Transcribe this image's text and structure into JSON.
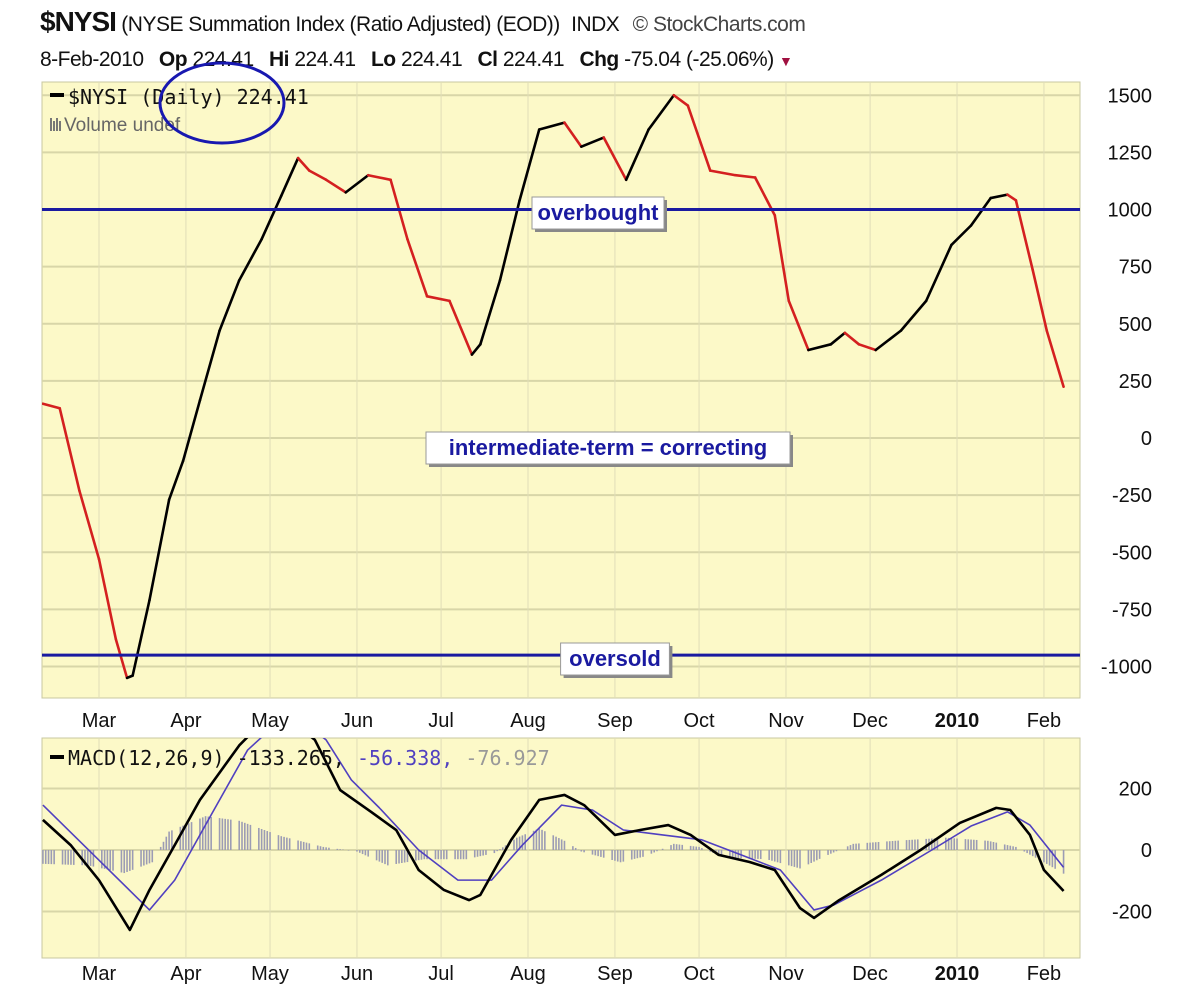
{
  "header": {
    "symbol": "$NYSI",
    "description": "(NYSE Summation Index (Ratio Adjusted) (EOD))",
    "exchange": "INDX",
    "brand": "© StockCharts.com",
    "date": "8-Feb-2010",
    "open_label": "Op",
    "open": "224.41",
    "high_label": "Hi",
    "high": "224.41",
    "low_label": "Lo",
    "low": "224.41",
    "close_label": "Cl",
    "close": "224.41",
    "change_label": "Chg",
    "change": "-75.04 (-25.06%)",
    "change_direction": "down"
  },
  "colors": {
    "background": "#FCF9C8",
    "rising": "#000000",
    "falling": "#D42020",
    "annotation": "#1A1AA0",
    "signal": "#5040C0",
    "histogram": "#9C9CB4"
  },
  "chart_data": [
    {
      "type": "line",
      "panel": "price",
      "legend": {
        "series": "$NYSI (Daily) 224.41",
        "volume": "Volume undef"
      },
      "y_ticks": [
        1500,
        1250,
        1000,
        750,
        500,
        250,
        0,
        -250,
        -500,
        -750,
        -1000
      ],
      "ylim": [
        -1120,
        1570
      ],
      "xlim": [
        "2009-02-09",
        "2010-02-12"
      ],
      "x_ticks": [
        "Mar",
        "Apr",
        "May",
        "Jun",
        "Jul",
        "Aug",
        "Sep",
        "Oct",
        "Nov",
        "Dec",
        "2010",
        "Feb"
      ],
      "grid": true,
      "color_rule": "black when rising, red when falling",
      "reference_lines": [
        {
          "value": 1000,
          "label": "overbought"
        },
        {
          "value": -950,
          "label": "oversold"
        }
      ],
      "annotation": "intermediate-term = correcting",
      "circled_text": "(Daily)",
      "series": [
        {
          "x": [
            "2009-02-09",
            "2009-02-15",
            "2009-02-22",
            "2009-03-01",
            "2009-03-07",
            "2009-03-11",
            "2009-03-13",
            "2009-03-19",
            "2009-03-26",
            "2009-03-31",
            "2009-04-06",
            "2009-04-13",
            "2009-04-20",
            "2009-04-28",
            "2009-05-05",
            "2009-05-11",
            "2009-05-15",
            "2009-05-21",
            "2009-05-28",
            "2009-06-05",
            "2009-06-13",
            "2009-06-19",
            "2009-06-26",
            "2009-07-04",
            "2009-07-12",
            "2009-07-15",
            "2009-07-22",
            "2009-07-29",
            "2009-08-05",
            "2009-08-14",
            "2009-08-20",
            "2009-08-28",
            "2009-09-05",
            "2009-09-13",
            "2009-09-22",
            "2009-09-27",
            "2009-10-05",
            "2009-10-14",
            "2009-10-21",
            "2009-10-28",
            "2009-11-02",
            "2009-11-09",
            "2009-11-17",
            "2009-11-22",
            "2009-11-27",
            "2009-12-03",
            "2009-12-12",
            "2009-12-21",
            "2009-12-30",
            "2010-01-06",
            "2010-01-13",
            "2010-01-19",
            "2010-01-22",
            "2010-01-28",
            "2010-02-02",
            "2010-02-08"
          ],
          "y": [
            150,
            130,
            -230,
            -530,
            -880,
            -1050,
            -1040,
            -710,
            -270,
            -100,
            165,
            470,
            690,
            870,
            1060,
            1225,
            1170,
            1130,
            1075,
            1150,
            1130,
            870,
            620,
            600,
            365,
            410,
            690,
            1040,
            1350,
            1380,
            1275,
            1315,
            1130,
            1350,
            1500,
            1455,
            1170,
            1150,
            1140,
            975,
            600,
            385,
            410,
            460,
            410,
            385,
            470,
            600,
            845,
            930,
            1050,
            1065,
            1040,
            735,
            470,
            224.41
          ]
        }
      ]
    },
    {
      "type": "line",
      "panel": "indicator",
      "legend": {
        "name": "MACD(12,26,9)",
        "macd": "-133.265,",
        "signal": "-56.338,",
        "histogram": "-76.927"
      },
      "y_ticks": [
        200,
        0,
        -200
      ],
      "ylim": [
        -350,
        365
      ],
      "x_ticks": [
        "Mar",
        "Apr",
        "May",
        "Jun",
        "Jul",
        "Aug",
        "Sep",
        "Oct",
        "Nov",
        "Dec",
        "2010",
        "Feb"
      ],
      "grid": true,
      "series": [
        {
          "name": "MACD",
          "x": [
            "2009-02-09",
            "2009-02-19",
            "2009-03-01",
            "2009-03-12",
            "2009-03-19",
            "2009-03-28",
            "2009-04-06",
            "2009-04-20",
            "2009-05-03",
            "2009-05-17",
            "2009-05-26",
            "2009-06-06",
            "2009-06-15",
            "2009-06-23",
            "2009-07-02",
            "2009-07-11",
            "2009-07-15",
            "2009-07-26",
            "2009-08-05",
            "2009-08-14",
            "2009-08-21",
            "2009-09-01",
            "2009-09-10",
            "2009-09-20",
            "2009-09-28",
            "2009-10-08",
            "2009-10-19",
            "2009-10-28",
            "2009-11-06",
            "2009-11-11",
            "2009-11-20",
            "2009-12-05",
            "2009-12-19",
            "2010-01-02",
            "2010-01-15",
            "2010-01-20",
            "2010-01-27",
            "2010-02-01",
            "2010-02-08"
          ],
          "y": [
            98,
            15,
            -98,
            -260,
            -130,
            16,
            163,
            340,
            460,
            358,
            195,
            124,
            65,
            -65,
            -130,
            -163,
            -146,
            33,
            163,
            179,
            146,
            49,
            65,
            81,
            49,
            -16,
            -39,
            -65,
            -189,
            -221,
            -163,
            -81,
            0,
            88,
            137,
            130,
            49,
            -65,
            -133.265
          ]
        },
        {
          "name": "Signal",
          "x": [
            "2009-02-09",
            "2009-03-01",
            "2009-03-19",
            "2009-03-28",
            "2009-04-09",
            "2009-04-23",
            "2009-05-08",
            "2009-05-21",
            "2009-05-30",
            "2009-06-09",
            "2009-06-23",
            "2009-07-07",
            "2009-07-19",
            "2009-07-30",
            "2009-08-13",
            "2009-08-24",
            "2009-09-04",
            "2009-09-18",
            "2009-10-02",
            "2009-10-16",
            "2009-10-30",
            "2009-11-11",
            "2009-11-18",
            "2009-12-05",
            "2009-12-23",
            "2010-01-06",
            "2010-01-19",
            "2010-01-27",
            "2010-02-08"
          ],
          "y": [
            146,
            -33,
            -195,
            -98,
            98,
            325,
            450,
            358,
            228,
            137,
            0,
            -98,
            -98,
            16,
            146,
            130,
            65,
            49,
            33,
            -16,
            -65,
            -195,
            -179,
            -98,
            0,
            78,
            124,
            81,
            -56.338
          ]
        },
        {
          "name": "Histogram",
          "x": [
            "2009-02-09",
            "2009-02-25",
            "2009-03-10",
            "2009-03-20",
            "2009-03-26",
            "2009-04-08",
            "2009-04-20",
            "2009-05-05",
            "2009-05-20",
            "2009-06-01",
            "2009-06-12",
            "2009-06-25",
            "2009-07-10",
            "2009-07-20",
            "2009-07-28",
            "2009-08-05",
            "2009-08-14",
            "2009-08-20",
            "2009-09-03",
            "2009-09-12",
            "2009-09-22",
            "2009-10-01",
            "2009-10-10",
            "2009-10-25",
            "2009-11-06",
            "2009-11-15",
            "2009-11-25",
            "2009-12-10",
            "2009-12-28",
            "2010-01-12",
            "2010-01-22",
            "2010-02-01",
            "2010-02-08"
          ],
          "y": [
            -45,
            -50,
            -75,
            -40,
            60,
            110,
            95,
            45,
            10,
            -5,
            -50,
            -30,
            -30,
            -10,
            40,
            70,
            30,
            -5,
            -40,
            -20,
            20,
            10,
            -25,
            -30,
            -60,
            -20,
            20,
            30,
            40,
            30,
            10,
            -40,
            -76.927
          ]
        }
      ]
    }
  ]
}
